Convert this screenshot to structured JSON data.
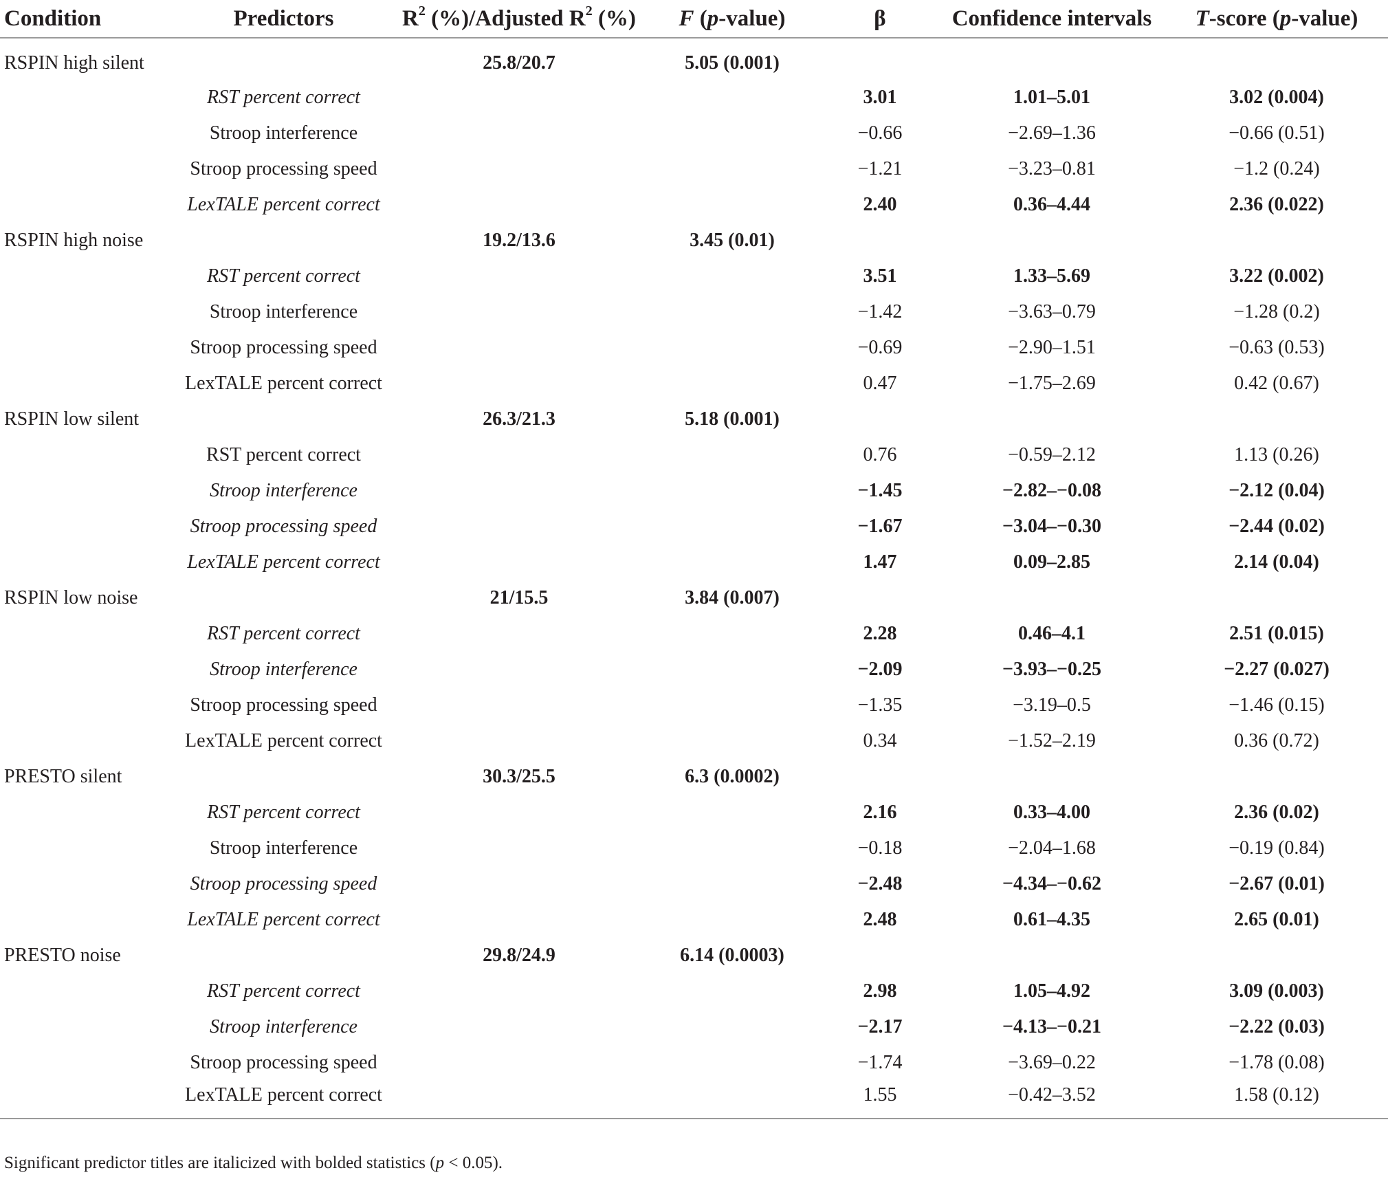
{
  "headers": {
    "condition": "Condition",
    "predictors": "Predictors",
    "r2_a": "R",
    "r2_sup1": "2",
    "r2_b": " (%)/Adjusted R",
    "r2_sup2": "2",
    "r2_c": " (%)",
    "f_letter": "F",
    "f_rest_a": " (",
    "f_p": "p",
    "f_rest_b": "-value)",
    "beta": "β",
    "ci": "Confidence intervals",
    "t_a": "T",
    "t_b": "-score (",
    "t_p": "p",
    "t_c": "-value)"
  },
  "groups": [
    {
      "condition": "RSPIN high silent",
      "r2": "25.8/20.7",
      "f": "5.05 (0.001)",
      "rows": [
        {
          "predictor": "RST percent correct",
          "beta": "3.01",
          "ci": "1.01–5.01",
          "t": "3.02 (0.004)",
          "sig": true
        },
        {
          "predictor": "Stroop interference",
          "beta": "−0.66",
          "ci": "−2.69–1.36",
          "t": "−0.66 (0.51)",
          "sig": false
        },
        {
          "predictor": "Stroop processing speed",
          "beta": "−1.21",
          "ci": "−3.23–0.81",
          "t": "−1.2 (0.24)",
          "sig": false
        },
        {
          "predictor": "LexTALE percent correct",
          "beta": "2.40",
          "ci": "0.36–4.44",
          "t": "2.36 (0.022)",
          "sig": true
        }
      ]
    },
    {
      "condition": "RSPIN high noise",
      "r2": "19.2/13.6",
      "f": "3.45 (0.01)",
      "rows": [
        {
          "predictor": "RST percent correct",
          "beta": "3.51",
          "ci": "1.33–5.69",
          "t": "3.22 (0.002)",
          "sig": true
        },
        {
          "predictor": "Stroop interference",
          "beta": "−1.42",
          "ci": "−3.63–0.79",
          "t": "−1.28 (0.2)",
          "sig": false
        },
        {
          "predictor": "Stroop processing speed",
          "beta": "−0.69",
          "ci": "−2.90–1.51",
          "t": "−0.63 (0.53)",
          "sig": false
        },
        {
          "predictor": "LexTALE percent correct",
          "beta": "0.47",
          "ci": "−1.75–2.69",
          "t": "0.42 (0.67)",
          "sig": false
        }
      ]
    },
    {
      "condition": "RSPIN low silent",
      "r2": "26.3/21.3",
      "f": "5.18 (0.001)",
      "rows": [
        {
          "predictor": "RST percent correct",
          "beta": "0.76",
          "ci": "−0.59–2.12",
          "t": "1.13 (0.26)",
          "sig": false
        },
        {
          "predictor": "Stroop interference",
          "beta": "−1.45",
          "ci": "−2.82–−0.08",
          "t": "−2.12 (0.04)",
          "sig": true
        },
        {
          "predictor": "Stroop processing speed",
          "beta": "−1.67",
          "ci": "−3.04–−0.30",
          "t": "−2.44 (0.02)",
          "sig": true
        },
        {
          "predictor": "LexTALE percent correct",
          "beta": "1.47",
          "ci": "0.09–2.85",
          "t": "2.14 (0.04)",
          "sig": true
        }
      ]
    },
    {
      "condition": "RSPIN low noise",
      "r2": "21/15.5",
      "f": "3.84 (0.007)",
      "rows": [
        {
          "predictor": "RST percent correct",
          "beta": "2.28",
          "ci": "0.46–4.1",
          "t": "2.51 (0.015)",
          "sig": true
        },
        {
          "predictor": "Stroop interference",
          "beta": "−2.09",
          "ci": "−3.93–−0.25",
          "t": "−2.27 (0.027)",
          "sig": true
        },
        {
          "predictor": "Stroop processing speed",
          "beta": "−1.35",
          "ci": "−3.19–0.5",
          "t": "−1.46 (0.15)",
          "sig": false
        },
        {
          "predictor": "LexTALE percent correct",
          "beta": "0.34",
          "ci": "−1.52–2.19",
          "t": "0.36 (0.72)",
          "sig": false
        }
      ]
    },
    {
      "condition": "PRESTO silent",
      "r2": "30.3/25.5",
      "f": "6.3 (0.0002)",
      "rows": [
        {
          "predictor": "RST percent correct",
          "beta": "2.16",
          "ci": "0.33–4.00",
          "t": "2.36 (0.02)",
          "sig": true
        },
        {
          "predictor": "Stroop interference",
          "beta": "−0.18",
          "ci": "−2.04–1.68",
          "t": "−0.19 (0.84)",
          "sig": false
        },
        {
          "predictor": "Stroop processing speed",
          "beta": "−2.48",
          "ci": "−4.34–−0.62",
          "t": "−2.67 (0.01)",
          "sig": true
        },
        {
          "predictor": "LexTALE percent correct",
          "beta": "2.48",
          "ci": "0.61–4.35",
          "t": "2.65 (0.01)",
          "sig": true
        }
      ]
    },
    {
      "condition": "PRESTO noise",
      "r2": "29.8/24.9",
      "f": "6.14 (0.0003)",
      "rows": [
        {
          "predictor": "RST percent correct",
          "beta": "2.98",
          "ci": "1.05–4.92",
          "t": "3.09 (0.003)",
          "sig": true
        },
        {
          "predictor": "Stroop interference",
          "beta": "−2.17",
          "ci": "−4.13–−0.21",
          "t": "−2.22 (0.03)",
          "sig": true
        },
        {
          "predictor": "Stroop processing speed",
          "beta": "−1.74",
          "ci": "−3.69–0.22",
          "t": "−1.78 (0.08)",
          "sig": false
        },
        {
          "predictor": "LexTALE percent correct",
          "beta": "1.55",
          "ci": "−0.42–3.52",
          "t": "1.58 (0.12)",
          "sig": false
        }
      ]
    }
  ],
  "footnote": {
    "text_a": "Significant predictor titles are italicized with bolded statistics (",
    "p": "p",
    "text_b": " < 0.05)."
  }
}
